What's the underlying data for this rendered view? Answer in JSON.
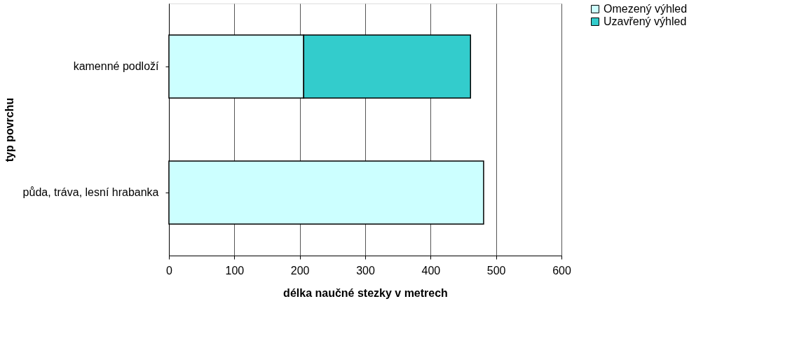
{
  "chart_data": {
    "type": "bar",
    "orientation": "horizontal",
    "stacked": true,
    "categories": [
      "kamenné podloží",
      "půda, tráva, lesní hrabanka"
    ],
    "series": [
      {
        "name": "Omezený výhled",
        "color": "#ccffff",
        "values": [
          206,
          481
        ]
      },
      {
        "name": "Uzavřený výhled",
        "color": "#33cccc",
        "values": [
          255,
          null
        ]
      }
    ],
    "xlabel": "délka naučné stezky v metrech",
    "ylabel": "typ povrchu",
    "xlim": [
      0,
      600
    ],
    "xticks": [
      0,
      100,
      200,
      300,
      400,
      500,
      600
    ],
    "grid": "x",
    "legend": "right"
  }
}
